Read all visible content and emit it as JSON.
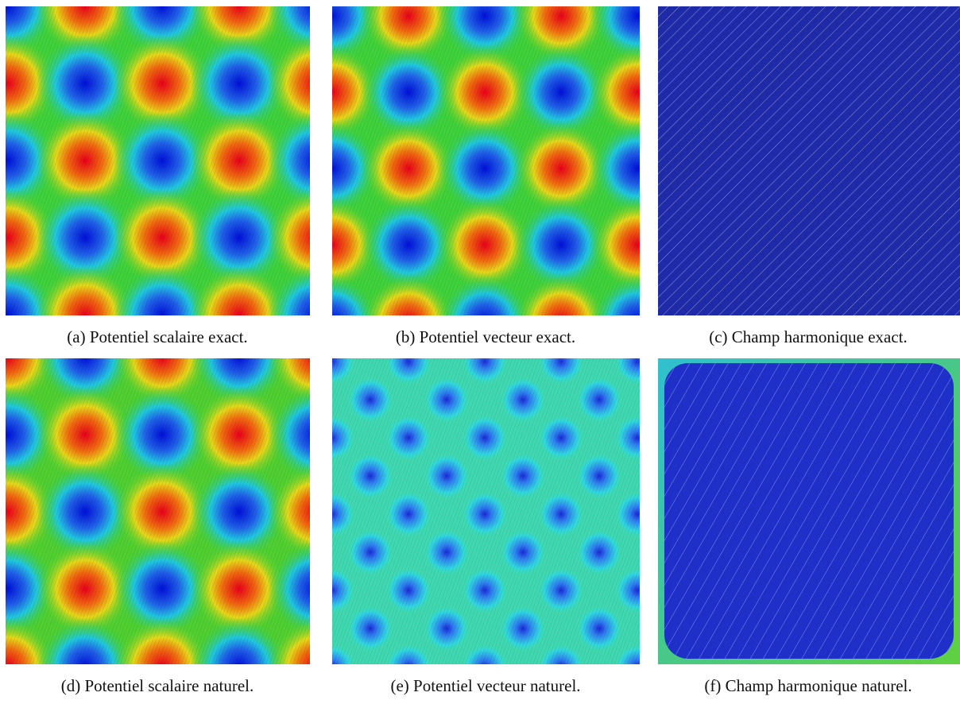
{
  "figure": {
    "panels": [
      {
        "caption": "(a) Potentiel scalaire exact."
      },
      {
        "caption": "(b) Potentiel vecteur exact."
      },
      {
        "caption": "(c) Champ harmonique exact."
      },
      {
        "caption": "(d) Potentiel scalaire naturel."
      },
      {
        "caption": "(e) Potentiel vecteur naturel."
      },
      {
        "caption": "(f) Champ harmonique naturel."
      }
    ]
  }
}
